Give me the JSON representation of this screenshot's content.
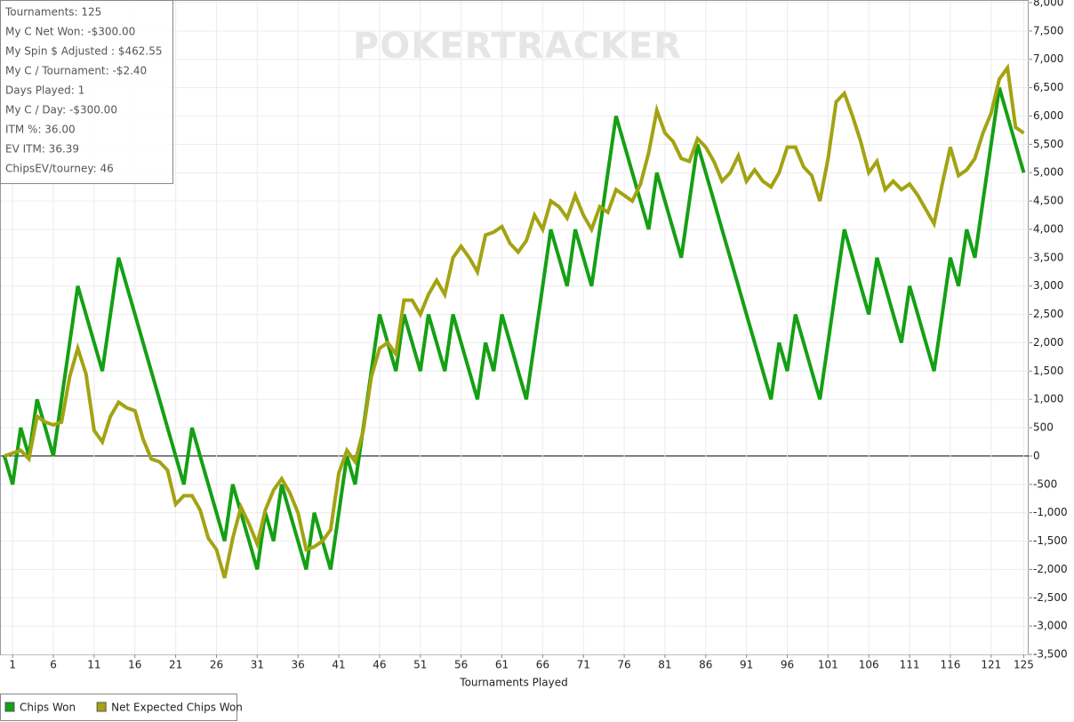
{
  "stats": [
    "Tournaments: 125",
    "My C Net Won: -$300.00",
    "My Spin $ Adjusted : $462.55",
    "My C / Tournament: -$2.40",
    "Days Played: 1",
    "My C / Day: -$300.00",
    "ITM %: 36.00",
    "EV ITM: 36.39",
    "ChipsEV/tourney: 46"
  ],
  "watermark": "POKERTRACKER",
  "chart_data": {
    "type": "line",
    "x_label": "Tournaments Played",
    "x": [
      0,
      1,
      2,
      3,
      4,
      5,
      6,
      7,
      8,
      9,
      10,
      11,
      12,
      13,
      14,
      15,
      16,
      17,
      18,
      19,
      20,
      21,
      22,
      23,
      24,
      25,
      26,
      27,
      28,
      29,
      30,
      31,
      32,
      33,
      34,
      35,
      36,
      37,
      38,
      39,
      40,
      41,
      42,
      43,
      44,
      45,
      46,
      47,
      48,
      49,
      50,
      51,
      52,
      53,
      54,
      55,
      56,
      57,
      58,
      59,
      60,
      61,
      62,
      63,
      64,
      65,
      66,
      67,
      68,
      69,
      70,
      71,
      72,
      73,
      74,
      75,
      76,
      77,
      78,
      79,
      80,
      81,
      82,
      83,
      84,
      85,
      86,
      87,
      88,
      89,
      90,
      91,
      92,
      93,
      94,
      95,
      96,
      97,
      98,
      99,
      100,
      101,
      102,
      103,
      104,
      105,
      106,
      107,
      108,
      109,
      110,
      111,
      112,
      113,
      114,
      115,
      116,
      117,
      118,
      119,
      120,
      121,
      122,
      123,
      124,
      125
    ],
    "series": [
      {
        "name": "Chips Won",
        "color": "#14a014",
        "values": [
          0,
          -500,
          500,
          0,
          1000,
          500,
          0,
          1000,
          2000,
          3000,
          2500,
          2000,
          1500,
          2500,
          3500,
          3000,
          2500,
          2000,
          1500,
          1000,
          500,
          0,
          -500,
          500,
          0,
          -500,
          -1000,
          -1500,
          -500,
          -1000,
          -1500,
          -2000,
          -1000,
          -1500,
          -500,
          -1000,
          -1500,
          -2000,
          -1000,
          -1500,
          -2000,
          -1000,
          0,
          -500,
          500,
          1500,
          2500,
          2000,
          1500,
          2500,
          2000,
          1500,
          2500,
          2000,
          1500,
          2500,
          2000,
          1500,
          1000,
          2000,
          1500,
          2500,
          2000,
          1500,
          1000,
          2000,
          3000,
          4000,
          3500,
          3000,
          4000,
          3500,
          3000,
          4000,
          5000,
          6000,
          5500,
          5000,
          4500,
          4000,
          5000,
          4500,
          4000,
          3500,
          4500,
          5500,
          5000,
          4500,
          4000,
          3500,
          3000,
          2500,
          2000,
          1500,
          1000,
          2000,
          1500,
          2500,
          2000,
          1500,
          1000,
          2000,
          3000,
          4000,
          3500,
          3000,
          2500,
          3500,
          3000,
          2500,
          2000,
          3000,
          2500,
          2000,
          1500,
          2500,
          3500,
          3000,
          4000,
          3500,
          4500,
          5500,
          6500,
          6000,
          5500,
          5000
        ]
      },
      {
        "name": "Net Expected Chips Won",
        "color": "#a3a313",
        "values": [
          0,
          50,
          100,
          -50,
          700,
          600,
          550,
          600,
          1400,
          1900,
          1450,
          450,
          250,
          700,
          950,
          850,
          800,
          300,
          -50,
          -100,
          -250,
          -850,
          -700,
          -700,
          -950,
          -1450,
          -1650,
          -2150,
          -1450,
          -900,
          -1200,
          -1550,
          -950,
          -600,
          -400,
          -650,
          -1000,
          -1650,
          -1600,
          -1500,
          -1300,
          -300,
          100,
          -100,
          450,
          1400,
          1900,
          2000,
          1800,
          2750,
          2750,
          2500,
          2850,
          3100,
          2850,
          3500,
          3700,
          3500,
          3250,
          3900,
          3950,
          4050,
          3750,
          3600,
          3800,
          4250,
          4000,
          4500,
          4400,
          4200,
          4600,
          4250,
          4000,
          4400,
          4300,
          4700,
          4600,
          4500,
          4800,
          5350,
          6100,
          5700,
          5550,
          5250,
          5200,
          5600,
          5450,
          5200,
          4850,
          5000,
          5300,
          4850,
          5050,
          4850,
          4750,
          5000,
          5450,
          5450,
          5100,
          4950,
          4500,
          5250,
          6250,
          6400,
          6000,
          5550,
          5000,
          5200,
          4700,
          4850,
          4700,
          4800,
          4600,
          4350,
          4100,
          4800,
          5450,
          4950,
          5050,
          5250,
          5700,
          6050,
          6650,
          6850,
          5800,
          5700
        ]
      }
    ],
    "xlim": [
      0,
      125.6
    ],
    "xticks": [
      1,
      6,
      11,
      16,
      21,
      26,
      31,
      36,
      41,
      46,
      51,
      56,
      61,
      66,
      71,
      76,
      81,
      86,
      91,
      96,
      101,
      106,
      111,
      116,
      121,
      125
    ],
    "ylim": [
      -3500,
      8000
    ],
    "yticks": [
      {
        "value": -3500,
        "label": "-3,500"
      },
      {
        "value": -3000,
        "label": "-3,000"
      },
      {
        "value": -2500,
        "label": "-2,500"
      },
      {
        "value": -2000,
        "label": "-2,000"
      },
      {
        "value": -1500,
        "label": "-1,500"
      },
      {
        "value": -1000,
        "label": "-1,000"
      },
      -500,
      0,
      500,
      {
        "value": 1000,
        "label": "1,000"
      },
      {
        "value": 1500,
        "label": "1,500"
      },
      {
        "value": 2000,
        "label": "2,000"
      },
      {
        "value": 2500,
        "label": "2,500"
      },
      {
        "value": 3000,
        "label": "3,000"
      },
      {
        "value": 3500,
        "label": "3,500"
      },
      {
        "value": 4000,
        "label": "4,000"
      },
      {
        "value": 4500,
        "label": "4,500"
      },
      {
        "value": 5000,
        "label": "5,000"
      },
      {
        "value": 5500,
        "label": "5,500"
      },
      {
        "value": 6000,
        "label": "6,000"
      },
      {
        "value": 6500,
        "label": "6,500"
      },
      {
        "value": 7000,
        "label": "7,000"
      },
      {
        "value": 7500,
        "label": "7,500"
      },
      {
        "value": 8000,
        "label": "8,000"
      }
    ],
    "grid": true,
    "y_axis_side": "right"
  }
}
